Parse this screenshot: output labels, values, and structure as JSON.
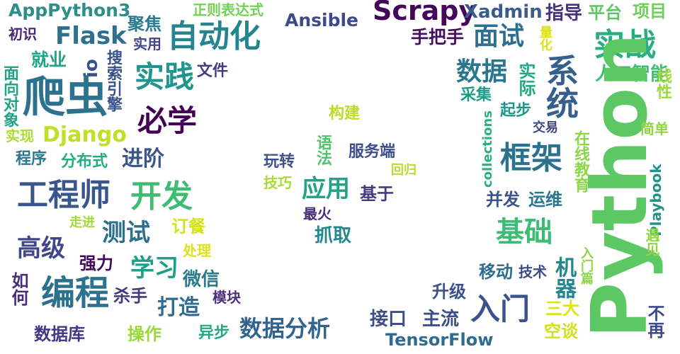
{
  "words": [
    {
      "t": "AppPython3",
      "c": "#2c8d8a"
    },
    {
      "t": "Scrapy",
      "c": "#44065a"
    },
    {
      "t": "Xadmin",
      "c": "#3a5d8e"
    },
    {
      "t": "指导",
      "c": "#46317e"
    },
    {
      "t": "平台",
      "c": "#5bc862"
    },
    {
      "t": "项目",
      "c": "#6ece58"
    },
    {
      "t": "正则表达式",
      "c": "#74d055"
    },
    {
      "t": "聚焦",
      "c": "#29798e"
    },
    {
      "t": "Ansible",
      "c": "#3e4a89"
    },
    {
      "t": "初识",
      "c": "#482475"
    },
    {
      "t": "Flask",
      "c": "#2d718e"
    },
    {
      "t": "自动化",
      "c": "#25848e"
    },
    {
      "t": "实用",
      "c": "#3f4889"
    },
    {
      "t": "手把手",
      "c": "#470d60"
    },
    {
      "t": "面试",
      "c": "#2e6e8e"
    },
    {
      "t": "量化",
      "c": "#dde318"
    },
    {
      "t": "实战",
      "c": "#29af7f"
    },
    {
      "t": "就业",
      "c": "#20a386"
    },
    {
      "t": "io",
      "c": "#3b518b"
    },
    {
      "t": "实践",
      "c": "#1f958b"
    },
    {
      "t": "文件",
      "c": "#443a83"
    },
    {
      "t": "数据",
      "c": "#2a768e"
    },
    {
      "t": "实际",
      "c": "#22a785"
    },
    {
      "t": "系统",
      "c": "#355f8d"
    },
    {
      "t": "人工智能",
      "c": "#40bd72"
    },
    {
      "t": "爬虫",
      "c": "#2c718e"
    },
    {
      "t": "面向对象",
      "c": "#20a486"
    },
    {
      "t": "搜索引擎",
      "c": "#3b518b"
    },
    {
      "t": "采集",
      "c": "#1e9c89"
    },
    {
      "t": "collections",
      "c": "#2ab07f"
    },
    {
      "t": "Python",
      "c": "#5cc863"
    },
    {
      "t": "线性",
      "c": "#9dd93b"
    },
    {
      "t": "构建",
      "c": "#bade28"
    },
    {
      "t": "起步",
      "c": "#1f968b"
    },
    {
      "t": "交易",
      "c": "#404588"
    },
    {
      "t": "简单",
      "c": "#8ed645"
    },
    {
      "t": "必学",
      "c": "#440154"
    },
    {
      "t": "实现",
      "c": "#addc30"
    },
    {
      "t": "Django",
      "c": "#c0df25"
    },
    {
      "t": "语法",
      "c": "#50c46a"
    },
    {
      "t": "服务端",
      "c": "#3d4e8a"
    },
    {
      "t": "在线教育",
      "c": "#8bd646"
    },
    {
      "t": "程序",
      "c": "#2a788e"
    },
    {
      "t": "分布式",
      "c": "#25ac82"
    },
    {
      "t": "进阶",
      "c": "#39558c"
    },
    {
      "t": "框架",
      "c": "#2c728e"
    },
    {
      "t": "Playbook",
      "c": "#21918c"
    },
    {
      "t": "玩转",
      "c": "#3b528b"
    },
    {
      "t": "回归",
      "c": "#b5de2b"
    },
    {
      "t": "工程师",
      "c": "#39568c"
    },
    {
      "t": "开发",
      "c": "#3fbc73"
    },
    {
      "t": "技巧",
      "c": "#a8db34"
    },
    {
      "t": "应用",
      "c": "#20a386"
    },
    {
      "t": "基于",
      "c": "#443b84"
    },
    {
      "t": "并发",
      "c": "#3b528b"
    },
    {
      "t": "运维",
      "c": "#2a788e"
    },
    {
      "t": "最火",
      "c": "#472d7b"
    },
    {
      "t": "走进",
      "c": "#a0da39"
    },
    {
      "t": "订餐",
      "c": "#d2e21b"
    },
    {
      "t": "抓取",
      "c": "#24878e"
    },
    {
      "t": "测试",
      "c": "#2d708e"
    },
    {
      "t": "基础",
      "c": "#3dbc74"
    },
    {
      "t": "遇见",
      "c": "#8fd744"
    },
    {
      "t": "高级",
      "c": "#404688"
    },
    {
      "t": "强力",
      "c": "#46085c"
    },
    {
      "t": "处理",
      "c": "#dde318"
    },
    {
      "t": "学习",
      "c": "#1f9e89"
    },
    {
      "t": "移动",
      "c": "#2e6d8e"
    },
    {
      "t": "技术",
      "c": "#3d4d8a"
    },
    {
      "t": "机器",
      "c": "#24868e"
    },
    {
      "t": "入门篇",
      "c": "#8bd646"
    },
    {
      "t": "如何",
      "c": "#472c7a"
    },
    {
      "t": "编程",
      "c": "#2c728e"
    },
    {
      "t": "杀手",
      "c": "#44397f"
    },
    {
      "t": "微信",
      "c": "#297b8e"
    },
    {
      "t": "升级",
      "c": "#3b518b"
    },
    {
      "t": "模块",
      "c": "#4f2d7f"
    },
    {
      "t": "打造",
      "c": "#2f6c8e"
    },
    {
      "t": "入门",
      "c": "#3b528b"
    },
    {
      "t": "三大",
      "c": "#dde318"
    },
    {
      "t": "接口",
      "c": "#3d4d8a"
    },
    {
      "t": "主流",
      "c": "#3d4d8a"
    },
    {
      "t": "不再",
      "c": "#3e4989"
    },
    {
      "t": "数据库",
      "c": "#453781"
    },
    {
      "t": "操作",
      "c": "#99d83c"
    },
    {
      "t": "异步",
      "c": "#22a884"
    },
    {
      "t": "数据分析",
      "c": "#32658e"
    },
    {
      "t": "TensorFlow",
      "c": "#2f6b8e"
    },
    {
      "t": "空谈",
      "c": "#d0e11c"
    }
  ]
}
